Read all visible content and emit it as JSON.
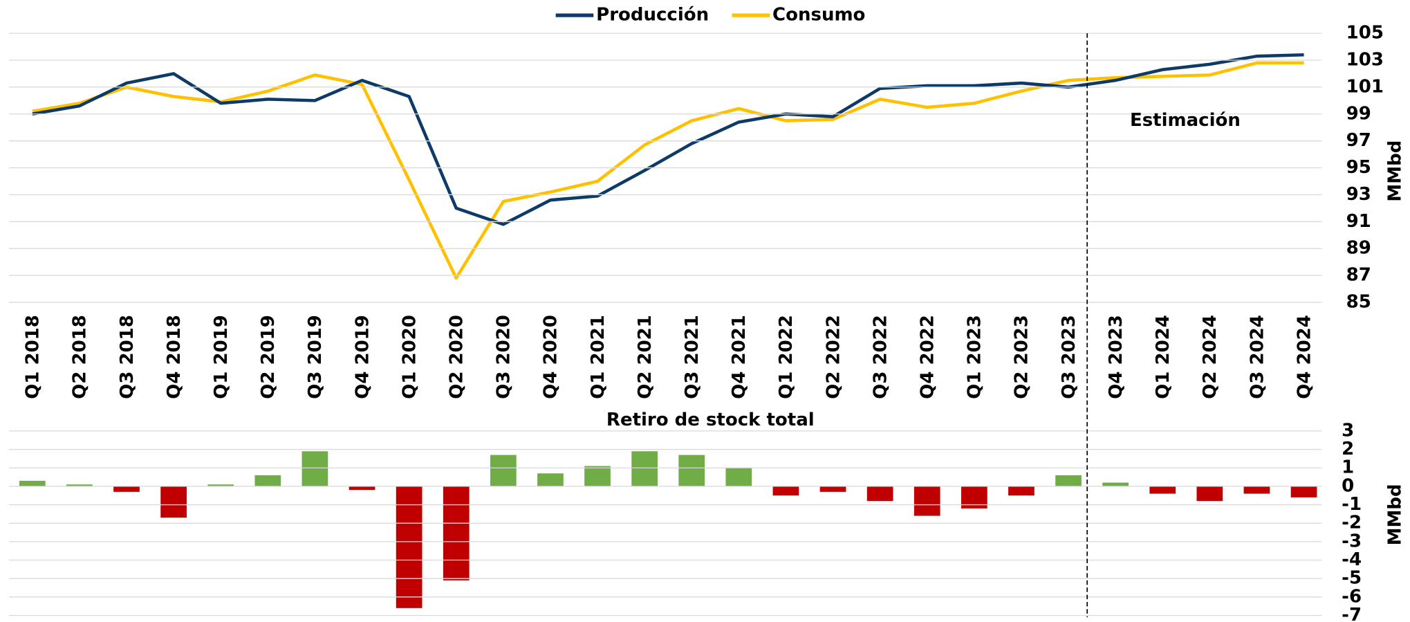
{
  "chart_data": [
    {
      "type": "line",
      "categories": [
        "Q1 2018",
        "Q2 2018",
        "Q3 2018",
        "Q4 2018",
        "Q1 2019",
        "Q2 2019",
        "Q3 2019",
        "Q4 2019",
        "Q1 2020",
        "Q2 2020",
        "Q3 2020",
        "Q4 2020",
        "Q1 2021",
        "Q2 2021",
        "Q3 2021",
        "Q4 2021",
        "Q1 2022",
        "Q2 2022",
        "Q3 2022",
        "Q4 2022",
        "Q1 2023",
        "Q2 2023",
        "Q3 2023",
        "Q4 2023",
        "Q1 2024",
        "Q2 2024",
        "Q3 2024",
        "Q4 2024"
      ],
      "series": [
        {
          "name": "Producción",
          "color": "#0d3a66",
          "values": [
            99.0,
            99.6,
            101.3,
            102.0,
            99.8,
            100.1,
            100.0,
            101.5,
            100.3,
            92.0,
            90.8,
            92.6,
            92.9,
            94.8,
            96.8,
            98.4,
            99.0,
            98.8,
            100.9,
            101.1,
            101.1,
            101.3,
            101.0,
            101.5,
            102.3,
            102.7,
            103.3,
            103.4
          ]
        },
        {
          "name": "Consumo",
          "color": "#ffc000",
          "values": [
            99.2,
            99.8,
            101.0,
            100.3,
            99.9,
            100.7,
            101.9,
            101.2,
            94.1,
            86.8,
            92.5,
            93.2,
            94.0,
            96.7,
            98.5,
            99.4,
            98.5,
            98.6,
            100.1,
            99.5,
            99.8,
            100.7,
            101.5,
            101.7,
            101.8,
            101.9,
            102.8,
            102.8
          ]
        }
      ],
      "ylim": [
        85,
        105
      ],
      "yticks": [
        85,
        87,
        89,
        91,
        93,
        95,
        97,
        99,
        101,
        103,
        105
      ],
      "y_label": "MMbd",
      "annotation": "Estimación",
      "legend": "top",
      "grid": true
    },
    {
      "type": "bar",
      "title": "Retiro de stock total",
      "values": [
        0.3,
        0.1,
        -0.3,
        -1.7,
        0.1,
        0.6,
        1.9,
        -0.2,
        -6.6,
        -5.1,
        1.7,
        0.7,
        1.1,
        1.9,
        1.7,
        1.0,
        -0.5,
        -0.3,
        -0.8,
        -1.6,
        -1.2,
        -0.5,
        0.6,
        0.2,
        -0.4,
        -0.8,
        -0.4,
        -0.6
      ],
      "positive_color": "#70ad47",
      "negative_color": "#c00000",
      "ylim": [
        -7,
        3
      ],
      "yticks": [
        3,
        2,
        1,
        0,
        -1,
        -2,
        -3,
        -4,
        -5,
        -6,
        -7
      ],
      "y_label": "MMbd",
      "grid": true
    }
  ]
}
